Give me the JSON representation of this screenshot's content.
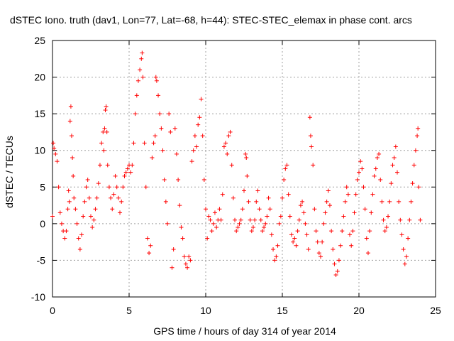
{
  "chart_data": {
    "type": "scatter",
    "title": "dSTEC Iono. truth (dav1, Lon=77, Lat=-68, h=44): STEC-STEC_elemax in phase cont. arcs",
    "xlabel": "GPS time / hours of day 314 of year 2014",
    "ylabel": "dSTEC  / TECUs",
    "xlim": [
      0,
      25
    ],
    "ylim": [
      -10,
      25
    ],
    "xticks": [
      0,
      5,
      10,
      15,
      20,
      25
    ],
    "yticks": [
      -10,
      -5,
      0,
      5,
      10,
      15,
      20,
      25
    ],
    "grid": true,
    "marker": "+",
    "series": [
      {
        "name": "",
        "color": "#ff0000",
        "points": [
          [
            0.0,
            1.0
          ],
          [
            0.05,
            11.0
          ],
          [
            0.1,
            10.3
          ],
          [
            0.2,
            9.5
          ],
          [
            0.3,
            8.5
          ],
          [
            0.4,
            5.0
          ],
          [
            0.5,
            1.5
          ],
          [
            0.6,
            0.0
          ],
          [
            0.7,
            -1.0
          ],
          [
            0.8,
            -2.0
          ],
          [
            0.9,
            -1.0
          ],
          [
            1.0,
            2.0
          ],
          [
            1.05,
            4.5
          ],
          [
            1.1,
            3.0
          ],
          [
            1.15,
            14.0
          ],
          [
            1.2,
            16.0
          ],
          [
            1.25,
            12.0
          ],
          [
            1.3,
            9.0
          ],
          [
            1.35,
            6.5
          ],
          [
            1.4,
            3.5
          ],
          [
            1.5,
            2.0
          ],
          [
            1.6,
            0.0
          ],
          [
            1.7,
            -2.0
          ],
          [
            1.8,
            -3.5
          ],
          [
            1.9,
            -1.5
          ],
          [
            2.0,
            1.0
          ],
          [
            2.1,
            3.0
          ],
          [
            2.2,
            5.0
          ],
          [
            2.3,
            6.0
          ],
          [
            2.4,
            3.5
          ],
          [
            2.5,
            1.0
          ],
          [
            2.6,
            -0.5
          ],
          [
            2.7,
            0.5
          ],
          [
            2.8,
            2.0
          ],
          [
            2.9,
            3.5
          ],
          [
            3.0,
            5.5
          ],
          [
            3.1,
            8.0
          ],
          [
            3.2,
            11.0
          ],
          [
            3.3,
            12.5
          ],
          [
            3.35,
            10.0
          ],
          [
            3.4,
            13.0
          ],
          [
            3.45,
            15.5
          ],
          [
            3.5,
            16.0
          ],
          [
            3.55,
            12.5
          ],
          [
            3.6,
            8.0
          ],
          [
            3.7,
            5.0
          ],
          [
            3.8,
            3.5
          ],
          [
            3.9,
            2.0
          ],
          [
            4.0,
            4.0
          ],
          [
            4.1,
            6.5
          ],
          [
            4.2,
            5.0
          ],
          [
            4.3,
            3.5
          ],
          [
            4.4,
            1.5
          ],
          [
            4.5,
            3.0
          ],
          [
            4.6,
            5.0
          ],
          [
            4.7,
            6.5
          ],
          [
            4.8,
            7.0
          ],
          [
            4.9,
            7.5
          ],
          [
            5.0,
            8.0
          ],
          [
            5.1,
            7.0
          ],
          [
            5.2,
            8.0
          ],
          [
            5.3,
            11.0
          ],
          [
            5.4,
            15.0
          ],
          [
            5.5,
            17.5
          ],
          [
            5.6,
            19.5
          ],
          [
            5.7,
            21.0
          ],
          [
            5.8,
            22.5
          ],
          [
            5.85,
            23.3
          ],
          [
            5.9,
            20.0
          ],
          [
            6.0,
            11.0
          ],
          [
            6.1,
            5.0
          ],
          [
            6.2,
            -2.0
          ],
          [
            6.3,
            -4.0
          ],
          [
            6.4,
            -3.0
          ],
          [
            6.5,
            9.0
          ],
          [
            6.6,
            11.0
          ],
          [
            6.7,
            12.0
          ],
          [
            6.75,
            20.0
          ],
          [
            6.8,
            19.5
          ],
          [
            6.9,
            17.5
          ],
          [
            7.0,
            15.0
          ],
          [
            7.1,
            13.0
          ],
          [
            7.2,
            10.0
          ],
          [
            7.3,
            6.0
          ],
          [
            7.4,
            3.0
          ],
          [
            7.5,
            0.0
          ],
          [
            7.6,
            15.0
          ],
          [
            7.7,
            12.5
          ],
          [
            7.8,
            -6.0
          ],
          [
            7.9,
            -3.5
          ],
          [
            8.0,
            13.0
          ],
          [
            8.1,
            9.5
          ],
          [
            8.2,
            6.0
          ],
          [
            8.3,
            2.5
          ],
          [
            8.4,
            -0.5
          ],
          [
            8.5,
            -2.0
          ],
          [
            8.6,
            -4.5
          ],
          [
            8.7,
            -5.5
          ],
          [
            8.8,
            -6.0
          ],
          [
            8.9,
            -4.5
          ],
          [
            9.0,
            -5.0
          ],
          [
            9.1,
            8.5
          ],
          [
            9.2,
            10.0
          ],
          [
            9.3,
            12.0
          ],
          [
            9.4,
            10.5
          ],
          [
            9.5,
            13.5
          ],
          [
            9.6,
            14.5
          ],
          [
            9.7,
            17.0
          ],
          [
            9.8,
            12.0
          ],
          [
            9.9,
            6.0
          ],
          [
            10.0,
            2.0
          ],
          [
            10.1,
            -2.0
          ],
          [
            10.2,
            1.0
          ],
          [
            10.3,
            0.5
          ],
          [
            10.4,
            -1.0
          ],
          [
            10.5,
            0.0
          ],
          [
            10.6,
            1.5
          ],
          [
            10.7,
            -0.5
          ],
          [
            10.8,
            0.5
          ],
          [
            10.9,
            2.0
          ],
          [
            11.0,
            0.5
          ],
          [
            11.1,
            4.0
          ],
          [
            11.2,
            10.5
          ],
          [
            11.3,
            11.0
          ],
          [
            11.4,
            9.5
          ],
          [
            11.5,
            12.0
          ],
          [
            11.6,
            12.5
          ],
          [
            11.7,
            8.0
          ],
          [
            11.8,
            3.5
          ],
          [
            11.9,
            0.5
          ],
          [
            12.0,
            -1.0
          ],
          [
            12.1,
            -0.5
          ],
          [
            12.2,
            0.0
          ],
          [
            12.3,
            0.5
          ],
          [
            12.4,
            2.0
          ],
          [
            12.5,
            4.5
          ],
          [
            12.6,
            9.5
          ],
          [
            12.65,
            9.0
          ],
          [
            12.7,
            6.5
          ],
          [
            12.8,
            3.0
          ],
          [
            12.9,
            0.5
          ],
          [
            13.0,
            -1.0
          ],
          [
            13.1,
            -0.5
          ],
          [
            13.2,
            0.5
          ],
          [
            13.3,
            3.0
          ],
          [
            13.4,
            4.5
          ],
          [
            13.5,
            2.0
          ],
          [
            13.6,
            0.5
          ],
          [
            13.7,
            -1.0
          ],
          [
            13.8,
            -0.5
          ],
          [
            13.9,
            0.0
          ],
          [
            14.0,
            1.0
          ],
          [
            14.1,
            3.5
          ],
          [
            14.2,
            2.0
          ],
          [
            14.3,
            -1.5
          ],
          [
            14.4,
            -3.5
          ],
          [
            14.5,
            -5.0
          ],
          [
            14.6,
            -4.5
          ],
          [
            14.7,
            -3.0
          ],
          [
            14.8,
            0.0
          ],
          [
            14.9,
            1.0
          ],
          [
            15.0,
            3.5
          ],
          [
            15.1,
            6.0
          ],
          [
            15.2,
            7.5
          ],
          [
            15.3,
            8.0
          ],
          [
            15.4,
            4.0
          ],
          [
            15.5,
            1.0
          ],
          [
            15.6,
            -1.5
          ],
          [
            15.7,
            -2.5
          ],
          [
            15.8,
            -2.0
          ],
          [
            15.9,
            -3.0
          ],
          [
            16.0,
            -1.0
          ],
          [
            16.1,
            0.5
          ],
          [
            16.2,
            2.5
          ],
          [
            16.3,
            3.0
          ],
          [
            16.4,
            1.5
          ],
          [
            16.5,
            0.0
          ],
          [
            16.6,
            -1.5
          ],
          [
            16.7,
            -3.5
          ],
          [
            16.8,
            14.5
          ],
          [
            16.85,
            12.0
          ],
          [
            16.9,
            10.5
          ],
          [
            17.0,
            8.0
          ],
          [
            17.1,
            2.0
          ],
          [
            17.2,
            -1.0
          ],
          [
            17.3,
            -2.5
          ],
          [
            17.4,
            -4.0
          ],
          [
            17.5,
            -4.5
          ],
          [
            17.6,
            -2.5
          ],
          [
            17.7,
            0.0
          ],
          [
            17.8,
            1.5
          ],
          [
            17.9,
            3.0
          ],
          [
            18.0,
            4.5
          ],
          [
            18.1,
            2.5
          ],
          [
            18.2,
            -1.0
          ],
          [
            18.3,
            -3.5
          ],
          [
            18.4,
            -5.5
          ],
          [
            18.5,
            -7.0
          ],
          [
            18.6,
            -6.5
          ],
          [
            18.7,
            -5.0
          ],
          [
            18.8,
            -3.0
          ],
          [
            18.9,
            -1.0
          ],
          [
            19.0,
            1.0
          ],
          [
            19.1,
            3.0
          ],
          [
            19.2,
            5.0
          ],
          [
            19.3,
            4.0
          ],
          [
            19.4,
            -1.5
          ],
          [
            19.5,
            -3.0
          ],
          [
            19.6,
            -1.0
          ],
          [
            19.7,
            1.5
          ],
          [
            19.8,
            4.0
          ],
          [
            19.9,
            6.0
          ],
          [
            20.0,
            7.0
          ],
          [
            20.1,
            8.5
          ],
          [
            20.2,
            7.5
          ],
          [
            20.3,
            5.0
          ],
          [
            20.4,
            2.0
          ],
          [
            20.5,
            -2.0
          ],
          [
            20.6,
            -4.0
          ],
          [
            20.7,
            -1.0
          ],
          [
            20.8,
            1.5
          ],
          [
            20.9,
            4.0
          ],
          [
            21.0,
            6.5
          ],
          [
            21.1,
            7.5
          ],
          [
            21.2,
            9.0
          ],
          [
            21.3,
            9.5
          ],
          [
            21.4,
            6.0
          ],
          [
            21.5,
            3.0
          ],
          [
            21.6,
            0.5
          ],
          [
            21.7,
            -1.0
          ],
          [
            21.8,
            -0.5
          ],
          [
            21.9,
            1.0
          ],
          [
            22.0,
            3.0
          ],
          [
            22.1,
            5.5
          ],
          [
            22.2,
            8.0
          ],
          [
            22.3,
            9.0
          ],
          [
            22.4,
            10.5
          ],
          [
            22.5,
            7.0
          ],
          [
            22.6,
            3.0
          ],
          [
            22.7,
            0.5
          ],
          [
            22.8,
            -1.5
          ],
          [
            22.9,
            -3.5
          ],
          [
            23.0,
            -5.5
          ],
          [
            23.1,
            -4.5
          ],
          [
            23.2,
            -2.0
          ],
          [
            23.3,
            0.5
          ],
          [
            23.4,
            3.0
          ],
          [
            23.5,
            5.5
          ],
          [
            23.6,
            8.0
          ],
          [
            23.7,
            10.0
          ],
          [
            23.8,
            12.0
          ],
          [
            23.85,
            13.0
          ],
          [
            23.9,
            5.0
          ],
          [
            24.0,
            0.5
          ]
        ]
      }
    ]
  }
}
